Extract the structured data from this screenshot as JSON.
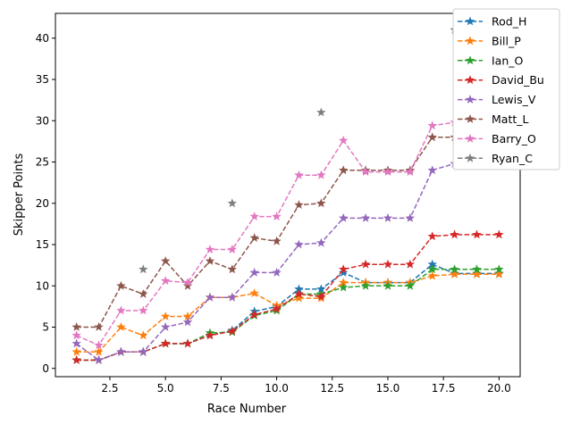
{
  "chart_data": {
    "type": "line",
    "title": "",
    "xlabel": "Race Number",
    "ylabel": "Skipper Points",
    "xlim": [
      0.05,
      20.95
    ],
    "ylim": [
      -1,
      43
    ],
    "x_ticks": [
      "2.5",
      "5.0",
      "7.5",
      "10.0",
      "12.5",
      "15.0",
      "17.5",
      "20.0"
    ],
    "y_ticks": [
      "0",
      "5",
      "10",
      "15",
      "20",
      "25",
      "30",
      "35",
      "40"
    ],
    "grid": false,
    "legend_placement": "outside-top-right",
    "marker": "star",
    "line_style": "dashed",
    "x": [
      1,
      2,
      3,
      4,
      5,
      6,
      7,
      8,
      9,
      10,
      11,
      12,
      13,
      14,
      15,
      16,
      17,
      18,
      19,
      20
    ],
    "series": [
      {
        "name": "Rod_H",
        "color": "#1f77b4",
        "values": [
          1,
          1,
          2,
          2,
          3,
          3,
          4,
          4.6,
          6.9,
          7.5,
          9.6,
          9.6,
          11.6,
          10.4,
          10.4,
          10.4,
          12.6,
          11.5,
          11.5,
          11.5
        ]
      },
      {
        "name": "Bill_P",
        "color": "#ff7f0e",
        "values": [
          2,
          2,
          5,
          4,
          6.3,
          6.3,
          8.6,
          8.6,
          9.1,
          7.6,
          8.5,
          8.5,
          10.4,
          10.4,
          10.4,
          10.4,
          11.2,
          11.4,
          11.4,
          11.4
        ]
      },
      {
        "name": "Ian_O",
        "color": "#2ca02c",
        "values": [
          1,
          1,
          2,
          2,
          3,
          3,
          4.3,
          4.4,
          6.4,
          7.0,
          9.0,
          9.0,
          9.8,
          10.0,
          10.0,
          10.0,
          12.0,
          12.0,
          12.0,
          12.0
        ]
      },
      {
        "name": "David_Bu",
        "color": "#d62728",
        "values": [
          1,
          1,
          2,
          2,
          3,
          3,
          4,
          4.5,
          6.5,
          7.2,
          9.0,
          8.7,
          12.0,
          12.6,
          12.6,
          12.6,
          16.0,
          16.2,
          16.2,
          16.2
        ]
      },
      {
        "name": "Lewis_V",
        "color": "#9467bd",
        "values": [
          3,
          1,
          2,
          2,
          5,
          5.6,
          8.6,
          8.6,
          11.6,
          11.6,
          15.0,
          15.2,
          18.2,
          18.2,
          18.2,
          18.2,
          24.0,
          24.8,
          24.8,
          24.8
        ]
      },
      {
        "name": "Matt_L",
        "color": "#8c564b",
        "values": [
          5,
          5,
          10,
          9,
          13,
          10,
          13,
          12,
          15.8,
          15.4,
          19.8,
          20,
          24,
          24,
          24,
          24,
          28,
          28,
          28,
          28
        ]
      },
      {
        "name": "Barry_O",
        "color": "#e377c2",
        "values": [
          4,
          2.8,
          7,
          7,
          10.6,
          10.4,
          14.4,
          14.4,
          18.4,
          18.4,
          23.4,
          23.4,
          27.6,
          23.8,
          23.8,
          23.8,
          29.4,
          29.8,
          29.8,
          29.8
        ]
      },
      {
        "name": "Ryan_C",
        "color": "#7f7f7f",
        "values": [
          null,
          null,
          null,
          12,
          null,
          null,
          null,
          20,
          null,
          null,
          null,
          31,
          null,
          null,
          null,
          null,
          null,
          41,
          41,
          41
        ]
      }
    ]
  }
}
